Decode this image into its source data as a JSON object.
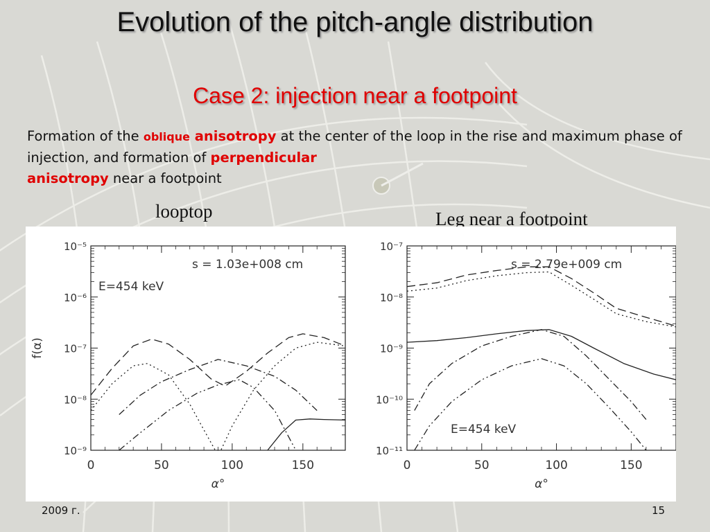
{
  "slide": {
    "title": "Evolution of the pitch-angle distribution",
    "subtitle": "Case 2: injection near a footpoint",
    "text": {
      "p1": "Formation of the ",
      "oblique": "oblique",
      "anisotropy1": " anisotropy",
      "p2": " at the center of the loop in the rise and maximum phase of injection, and formation of ",
      "perpendicular": "perpendicular",
      "anisotropy2": "anisotropy",
      "p3": " near a footpoint"
    },
    "label_left": "looptop",
    "label_right": "Leg near a footpoint",
    "footer_left": "2009 г.",
    "footer_right": "15"
  },
  "chart_data": [
    {
      "type": "line",
      "title": "",
      "xlabel": "α°",
      "ylabel": "f(α)",
      "xlim": [
        0,
        180
      ],
      "ylim": [
        1e-09,
        1e-05
      ],
      "yscale": "log",
      "xticks": [
        "0",
        "50",
        "100",
        "150"
      ],
      "yticks": [
        "10⁻⁹",
        "10⁻⁸",
        "10⁻⁷",
        "10⁻⁶",
        "10⁻⁵"
      ],
      "annotations": [
        "s = 1.03e+008 cm",
        "E=454 keV"
      ],
      "series": [
        {
          "style": "dashed",
          "x": [
            0,
            15,
            30,
            43,
            55,
            70,
            85,
            95,
            110,
            125,
            140,
            150,
            165,
            180
          ],
          "y": [
            1.2e-08,
            4e-08,
            1.1e-07,
            1.5e-07,
            1.2e-07,
            6e-08,
            2.5e-08,
            1.8e-08,
            3.5e-08,
            8e-08,
            1.6e-07,
            1.9e-07,
            1.6e-07,
            1.1e-07
          ]
        },
        {
          "style": "dotted",
          "x": [
            0,
            15,
            30,
            40,
            55,
            70,
            80,
            88,
            92,
            100,
            115,
            130,
            145,
            160,
            180
          ],
          "y": [
            6e-09,
            2e-08,
            4.5e-08,
            5e-08,
            3e-08,
            8e-09,
            2.5e-09,
            1e-09,
            1e-09,
            3e-09,
            1.5e-08,
            4.5e-08,
            1e-07,
            1.3e-07,
            1.1e-07
          ]
        },
        {
          "style": "dashdot",
          "x": [
            20,
            35,
            50,
            70,
            90,
            110,
            130,
            145,
            160
          ],
          "y": [
            5e-09,
            1.2e-08,
            2.2e-08,
            3.8e-08,
            6e-08,
            4.5e-08,
            2.8e-08,
            1.5e-08,
            6e-09
          ]
        },
        {
          "style": "dashdotdot",
          "x": [
            20,
            35,
            55,
            75,
            90,
            105,
            115,
            130,
            145
          ],
          "y": [
            1e-09,
            2.2e-09,
            6e-09,
            1.3e-08,
            1.9e-08,
            2.4e-08,
            1.7e-08,
            6e-09,
            1e-09
          ]
        },
        {
          "style": "solid",
          "x": [
            125,
            135,
            145,
            155,
            165,
            180
          ],
          "y": [
            1e-09,
            2.2e-09,
            3.9e-09,
            4.1e-09,
            4e-09,
            3.9e-09
          ]
        }
      ]
    },
    {
      "type": "line",
      "title": "",
      "xlabel": "α°",
      "ylabel": "",
      "xlim": [
        0,
        180
      ],
      "ylim": [
        1e-11,
        1e-07
      ],
      "yscale": "log",
      "xticks": [
        "0",
        "50",
        "100",
        "150"
      ],
      "yticks": [
        "10⁻¹¹",
        "10⁻¹⁰",
        "10⁻⁹",
        "10⁻⁸",
        "10⁻⁷"
      ],
      "annotations": [
        "s = 2.79e+009 cm",
        "E=454 keV"
      ],
      "series": [
        {
          "style": "dashed",
          "x": [
            0,
            20,
            40,
            60,
            80,
            95,
            110,
            125,
            140,
            160,
            180
          ],
          "y": [
            1.6e-08,
            1.9e-08,
            2.7e-08,
            3.3e-08,
            3.9e-08,
            3.9e-08,
            2.3e-08,
            1.2e-08,
            6e-09,
            4e-09,
            2.7e-09
          ]
        },
        {
          "style": "dotted",
          "x": [
            0,
            20,
            40,
            60,
            80,
            95,
            110,
            125,
            140,
            160,
            180
          ],
          "y": [
            1.3e-08,
            1.5e-08,
            2.1e-08,
            2.6e-08,
            3e-08,
            3.1e-08,
            1.7e-08,
            9e-09,
            4.7e-09,
            3.3e-09,
            2.6e-09
          ]
        },
        {
          "style": "solid",
          "x": [
            0,
            20,
            40,
            60,
            80,
            95,
            110,
            125,
            145,
            165,
            180
          ],
          "y": [
            1.3e-09,
            1.4e-09,
            1.6e-09,
            1.9e-09,
            2.2e-09,
            2.3e-09,
            1.7e-09,
            1e-09,
            5e-10,
            3.1e-10,
            2.4e-10
          ]
        },
        {
          "style": "dashdot",
          "x": [
            5,
            15,
            30,
            50,
            70,
            90,
            105,
            120,
            135,
            150,
            160
          ],
          "y": [
            6e-11,
            2e-10,
            5e-10,
            1.1e-09,
            1.7e-09,
            2.3e-09,
            1.7e-09,
            7e-10,
            2.5e-10,
            9e-11,
            4e-11
          ]
        },
        {
          "style": "dashdotdot",
          "x": [
            5,
            15,
            30,
            50,
            70,
            90,
            105,
            120,
            135,
            150,
            160
          ],
          "y": [
            1e-11,
            3e-11,
            9e-11,
            2.4e-10,
            4.5e-10,
            6.2e-10,
            4.5e-10,
            2e-10,
            7e-11,
            2.3e-11,
            1e-11
          ]
        }
      ]
    }
  ]
}
